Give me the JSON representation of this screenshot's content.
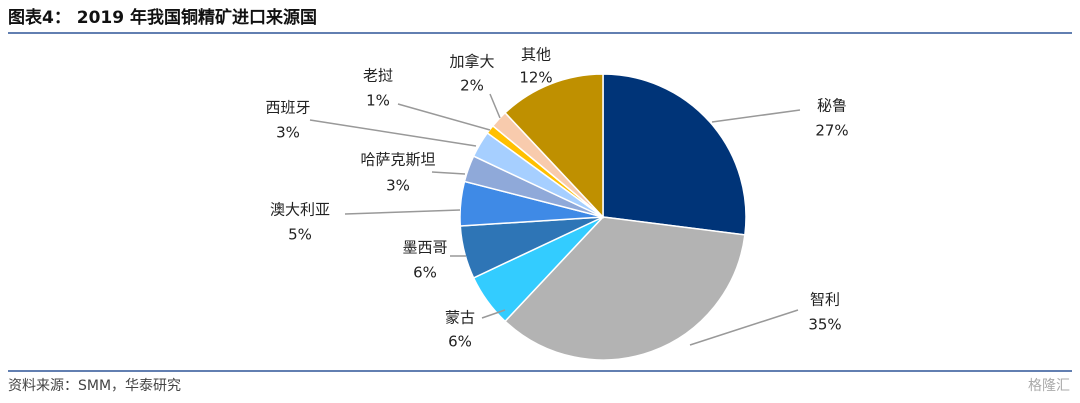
{
  "chart_data": {
    "type": "pie",
    "title": "图表4： 2019 年我国铜精矿进口来源国",
    "source": "资料来源：SMM，华泰研究",
    "watermark": "格隆汇",
    "categories": [
      "秘鲁",
      "智利",
      "蒙古",
      "墨西哥",
      "澳大利亚",
      "哈萨克斯坦",
      "西班牙",
      "老挝",
      "加拿大",
      "其他"
    ],
    "values": [
      27,
      35,
      6,
      6,
      5,
      3,
      3,
      1,
      2,
      12
    ],
    "value_labels": [
      "27%",
      "35%",
      "6%",
      "6%",
      "5%",
      "3%",
      "3%",
      "1%",
      "2%",
      "12%"
    ],
    "colors": [
      "#003478",
      "#b3b3b3",
      "#33ccff",
      "#2e75b6",
      "#3f8ae6",
      "#8fa9d9",
      "#a6cfff",
      "#ffc000",
      "#f8cbad",
      "#bf9000"
    ]
  }
}
